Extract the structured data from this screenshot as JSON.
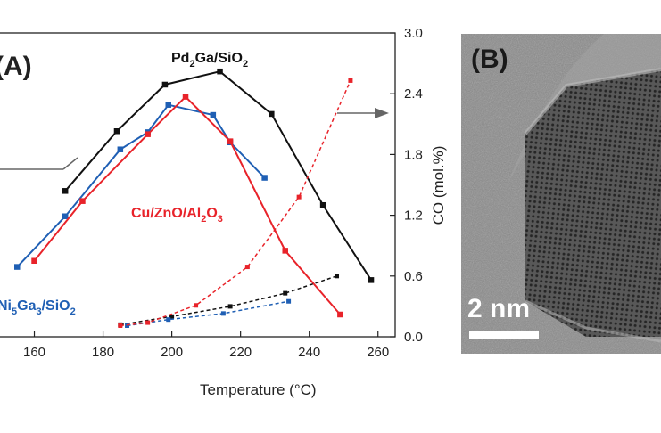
{
  "panel_a": {
    "label": "(A)",
    "chart_data": {
      "type": "line",
      "xlabel": "Temperature (°C)",
      "ylabel_right": "CO (mol.%)",
      "xlim": [
        150,
        265
      ],
      "x_ticks": [
        "160",
        "180",
        "200",
        "220",
        "240",
        "260"
      ],
      "x_tick_values": [
        160,
        180,
        200,
        220,
        240,
        260
      ],
      "y_right_lim": [
        0.0,
        3.0
      ],
      "y_right_ticks": [
        "0.0",
        "0.6",
        "1.2",
        "1.8",
        "2.4",
        "3.0"
      ],
      "y_right_tick_values": [
        0.0,
        0.6,
        1.2,
        1.8,
        2.4,
        3.0
      ],
      "left_axis_visible": false,
      "series": [
        {
          "key": "pd_main",
          "axis": "left",
          "style": "solid",
          "color": "#111111",
          "x": [
            169,
            184,
            198,
            214,
            229,
            244,
            258
          ],
          "y": [
            1.44,
            2.03,
            2.49,
            2.62,
            2.2,
            1.3,
            0.56
          ]
        },
        {
          "key": "ni_main",
          "axis": "left",
          "style": "solid",
          "color": "#1f5fb4",
          "x": [
            155,
            169,
            185,
            193,
            199,
            212,
            217,
            227
          ],
          "y": [
            0.69,
            1.19,
            1.85,
            2.02,
            2.29,
            2.19,
            1.92,
            1.57
          ]
        },
        {
          "key": "cu_main",
          "axis": "left",
          "style": "solid",
          "color": "#e8232a",
          "x": [
            160,
            174,
            193,
            204,
            217,
            233,
            249
          ],
          "y": [
            0.75,
            1.34,
            2.0,
            2.37,
            1.93,
            0.85,
            0.22
          ]
        },
        {
          "key": "pd_co",
          "axis": "right",
          "style": "dashed",
          "color": "#111111",
          "x": [
            185,
            200,
            217,
            233,
            248
          ],
          "y": [
            0.12,
            0.2,
            0.3,
            0.43,
            0.6
          ]
        },
        {
          "key": "ni_co",
          "axis": "right",
          "style": "dashed",
          "color": "#1f5fb4",
          "x": [
            187,
            199,
            215,
            234
          ],
          "y": [
            0.11,
            0.17,
            0.23,
            0.35
          ]
        },
        {
          "key": "cu_co",
          "axis": "right",
          "style": "dashed",
          "color": "#e8232a",
          "x": [
            185,
            193,
            207,
            222,
            237,
            252
          ],
          "y": [
            0.11,
            0.14,
            0.31,
            0.69,
            1.38,
            2.53
          ]
        }
      ],
      "labels": {
        "pd": {
          "main": "Pd",
          "sub1": "2",
          "mid": "Ga/SiO",
          "sub2": "2",
          "color": "#111111"
        },
        "cu": {
          "main": "Cu/ZnO/Al",
          "sub1": "2",
          "mid": "O",
          "sub2": "3",
          "color": "#e8232a"
        },
        "ni": {
          "main": "Ni",
          "sub1": "5",
          "mid": "Ga",
          "sub2": "3",
          "tail": "/SiO",
          "sub3": "2",
          "color": "#1f5fb4"
        }
      },
      "arrow_color": "#666666"
    }
  },
  "panel_b": {
    "label": "(B)",
    "scale_bar_text": "2 nm"
  }
}
